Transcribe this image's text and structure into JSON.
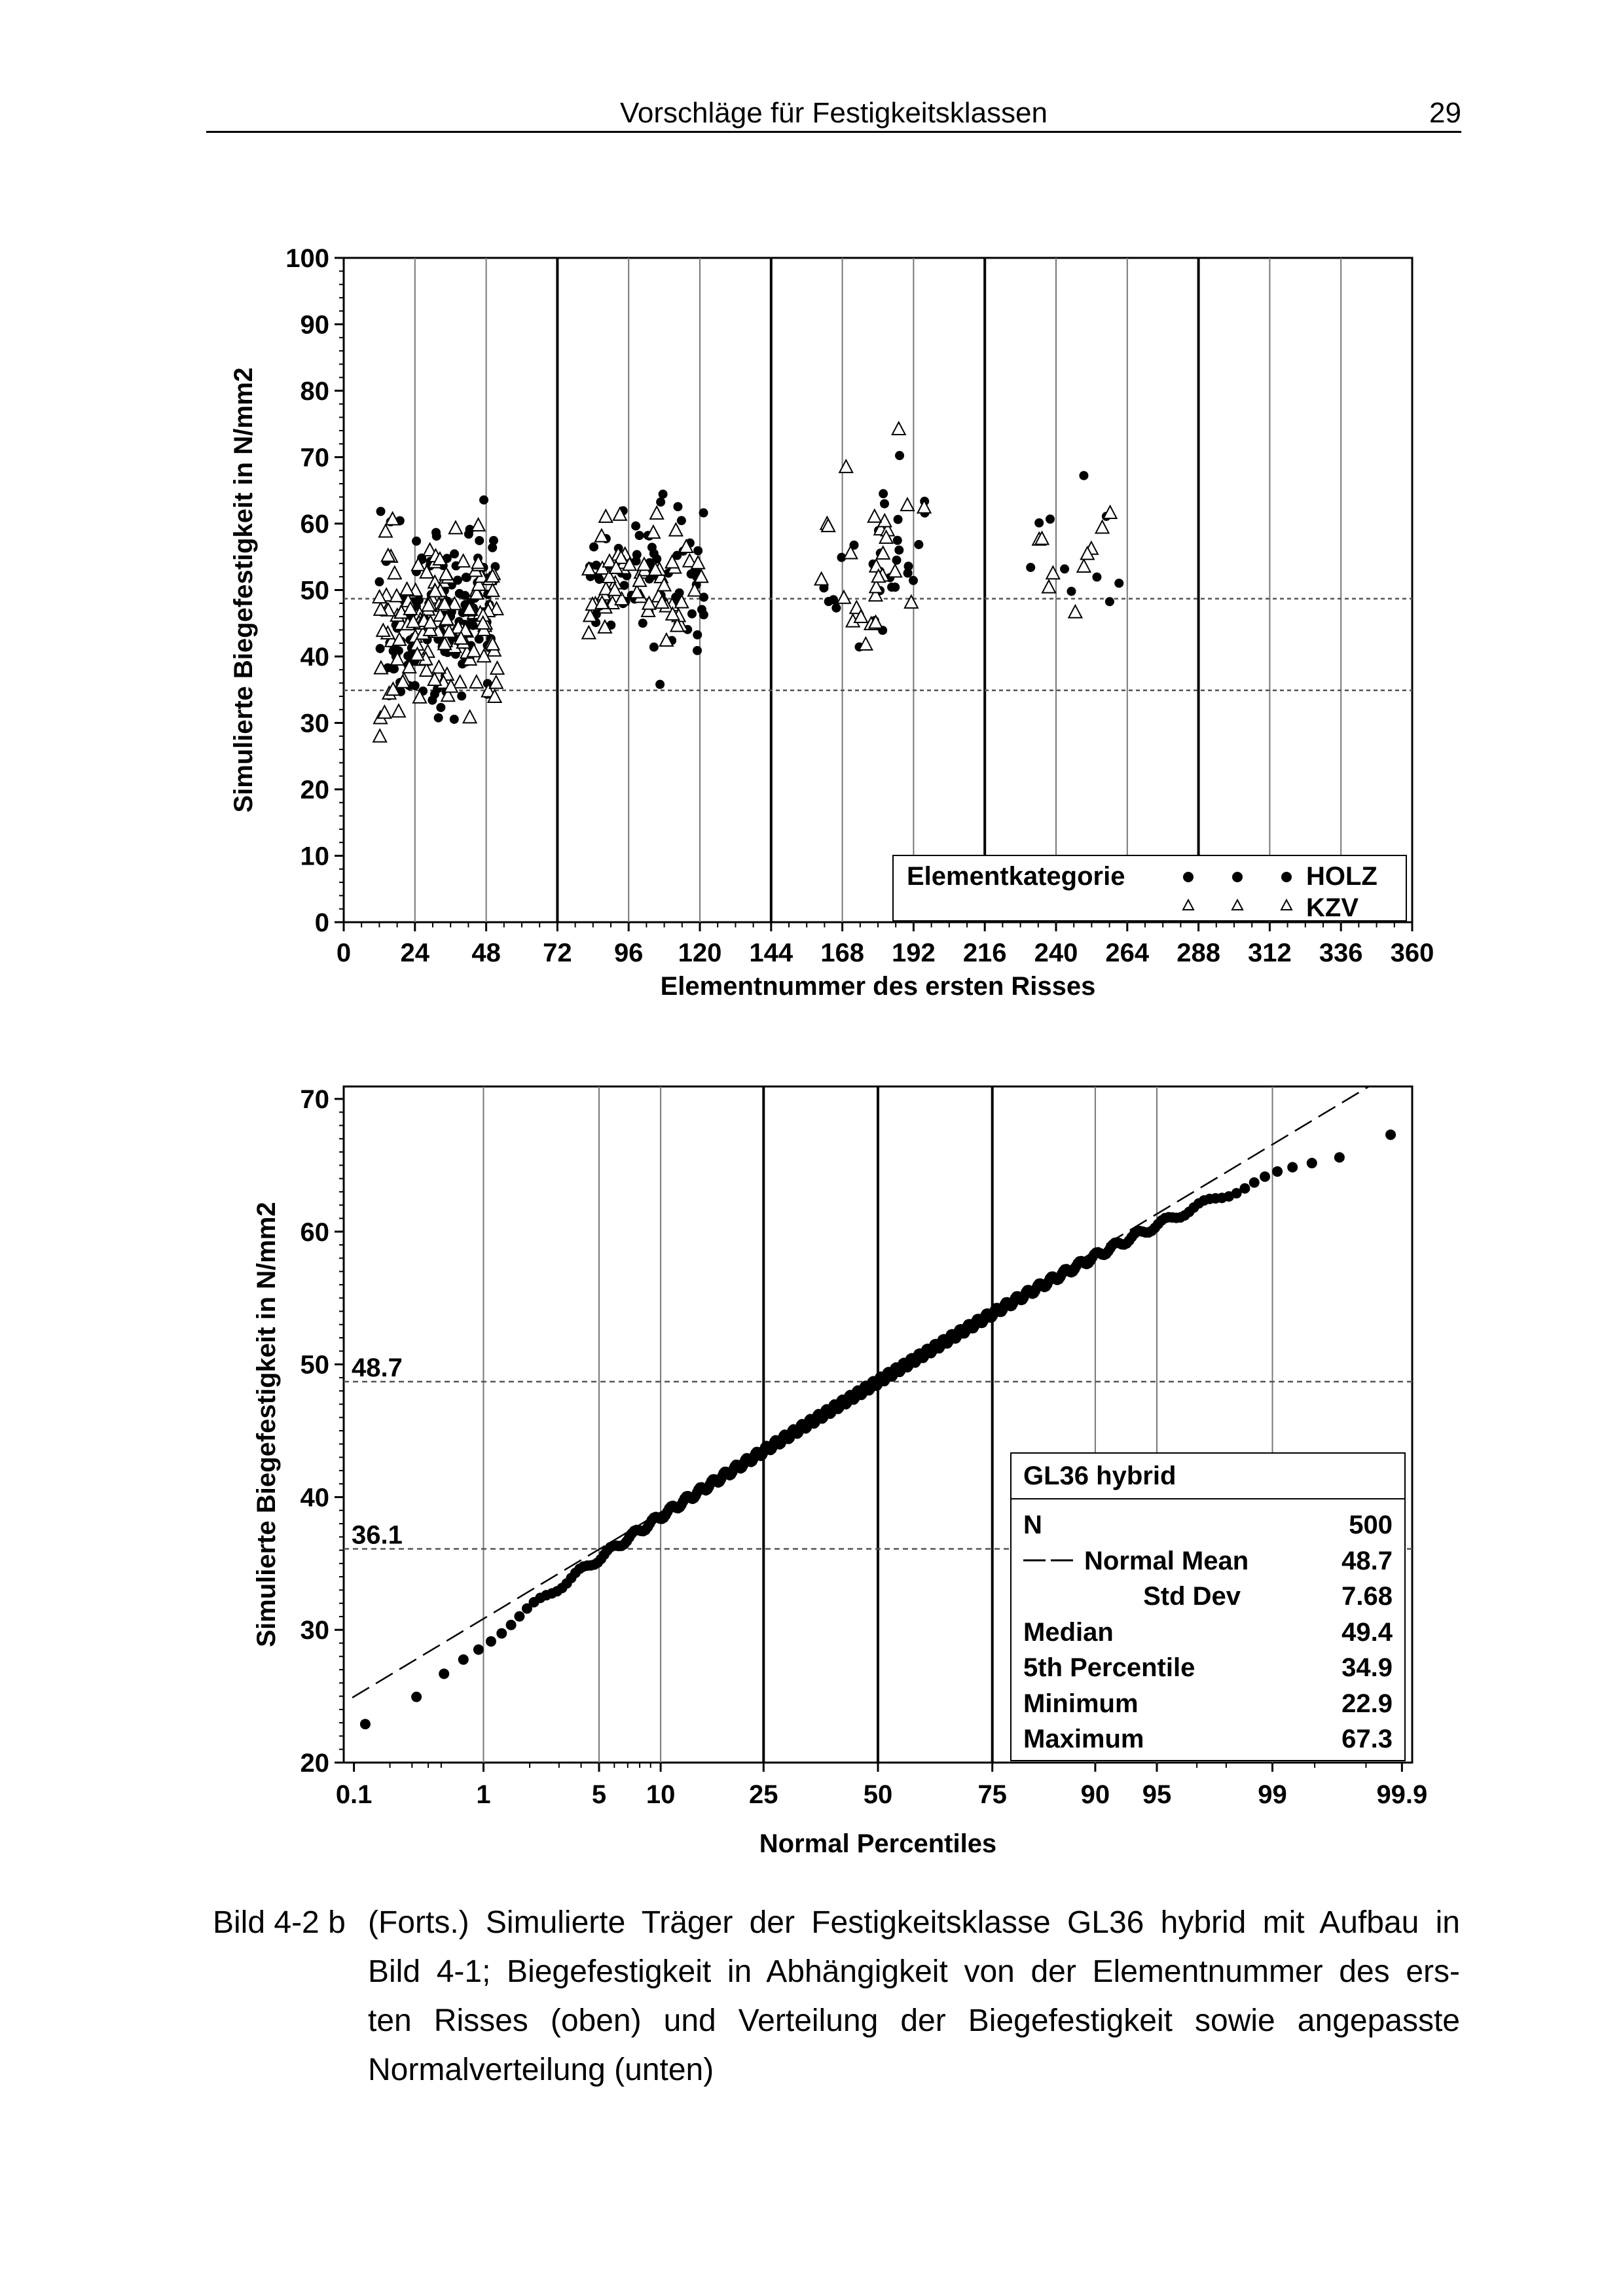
{
  "header": {
    "title": "Vorschläge für Festigkeitsklassen",
    "page_number": "29"
  },
  "chart_data": [
    {
      "type": "scatter",
      "title": "",
      "xlabel": "Elementnummer des ersten Risses",
      "ylabel": "Simulierte Biegefestigkeit in N/mm2",
      "xlim": [
        0,
        360
      ],
      "ylim": [
        0,
        100
      ],
      "x_ticks": [
        "0",
        "24",
        "48",
        "72",
        "96",
        "120",
        "144",
        "168",
        "192",
        "216",
        "240",
        "264",
        "288",
        "312",
        "336",
        "360"
      ],
      "y_ticks": [
        "0",
        "10",
        "20",
        "30",
        "40",
        "50",
        "60",
        "70",
        "80",
        "90",
        "100"
      ],
      "major_vertical_lines": [
        72,
        144,
        216,
        288
      ],
      "reference_lines": [
        48.7,
        34.9
      ],
      "legend": {
        "title": "Elementkategorie",
        "placement": "bottom-right",
        "entries": [
          {
            "name": "HOLZ",
            "marker": "filled-circle"
          },
          {
            "name": "KZV",
            "marker": "open-triangle"
          }
        ]
      },
      "clusters": [
        {
          "x_range": [
            12,
            52
          ],
          "y_mean": 45.5,
          "y_sd": 7,
          "n_holz": 150,
          "n_kzv": 140
        },
        {
          "x_range": [
            82,
            122
          ],
          "y_mean": 52,
          "y_sd": 5,
          "n_holz": 70,
          "n_kzv": 60
        },
        {
          "x_range": [
            160,
            196
          ],
          "y_mean": 53,
          "y_sd": 6,
          "n_holz": 30,
          "n_kzv": 28
        },
        {
          "x_range": [
            230,
            262
          ],
          "y_mean": 55,
          "y_sd": 6,
          "n_holz": 10,
          "n_kzv": 10
        }
      ]
    },
    {
      "type": "scatter",
      "subtype": "normal-probability-plot",
      "xlabel": "Normal Percentiles",
      "ylabel": "Simulierte Biegefestigkeit in N/mm2",
      "ylim": [
        20,
        70
      ],
      "x_ticks": [
        "0.1",
        "1",
        "5",
        "10",
        "25",
        "50",
        "75",
        "90",
        "95",
        "99",
        "99.9"
      ],
      "x_tick_values": [
        0.1,
        1,
        5,
        10,
        25,
        50,
        75,
        90,
        95,
        99,
        99.9
      ],
      "major_percentile_lines": [
        25,
        50,
        75
      ],
      "y_ticks": [
        "20",
        "30",
        "40",
        "50",
        "60",
        "70"
      ],
      "reference_lines": [
        {
          "value": 48.7,
          "label": "48.7"
        },
        {
          "value": 36.1,
          "label": "36.1"
        }
      ],
      "fit": {
        "type": "normal",
        "mean": 48.7,
        "sd": 7.68
      },
      "legend": {
        "title": "GL36 hybrid",
        "placement": "bottom-right",
        "rows": [
          {
            "label": "N",
            "value": "500"
          },
          {
            "label": "Normal Mean",
            "value": "48.7"
          },
          {
            "label": "Std Dev",
            "value": "7.68"
          },
          {
            "label": "Median",
            "value": "49.4"
          },
          {
            "label": "5th Percentile",
            "value": "34.9"
          },
          {
            "label": "Minimum",
            "value": "22.9"
          },
          {
            "label": "Maximum",
            "value": "67.3"
          }
        ]
      },
      "n": 500,
      "minimum": 22.9,
      "maximum": 67.3
    }
  ],
  "caption": {
    "label": "Bild 4-2 b",
    "lines": [
      "(Forts.) Simulierte Träger der Festigkeitsklasse GL36 hybrid mit Aufbau in",
      "Bild 4-1; Biegefestigkeit in Abhängigkeit von der Elementnummer des ers-",
      "ten Risses (oben) und Verteilung der Biegefestigkeit sowie angepasste",
      "Normalverteilung (unten)"
    ]
  }
}
